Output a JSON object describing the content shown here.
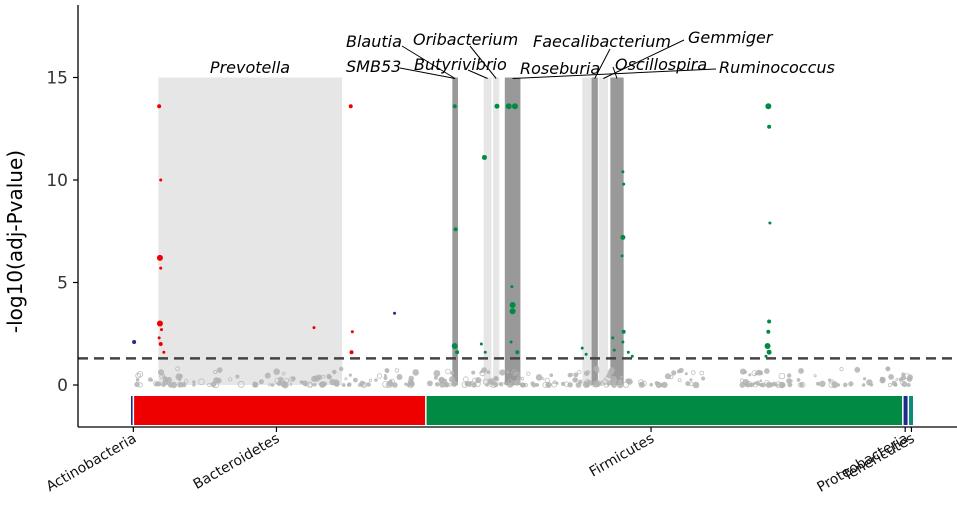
{
  "chart_data": {
    "type": "scatter",
    "title": "",
    "xlabel": "",
    "ylabel": "-log10(adj-Pvalue)",
    "ylim": [
      -1.9,
      18.5
    ],
    "yticks": [
      "0",
      "5",
      "10",
      "15"
    ],
    "ytick_values": [
      0,
      5,
      10,
      15
    ],
    "threshold": 1.3,
    "x_range": [
      0,
      100
    ],
    "phyla": [
      {
        "name": "Actinobacteria",
        "start": 0.0,
        "end": 0.3,
        "label_at": 0.3,
        "color": "#1f2a8c"
      },
      {
        "name": "Bacteroidetes",
        "start": 0.3,
        "end": 37.7,
        "label_at": 18.6,
        "color": "#ee0000"
      },
      {
        "name": "Firmicutes",
        "start": 37.7,
        "end": 98.7,
        "label_at": 66.5,
        "color": "#008a44"
      },
      {
        "name": "Proteobacteria",
        "start": 98.7,
        "end": 99.4,
        "label_at": 99.0,
        "color": "#1f2a8c"
      },
      {
        "name": "Tenericutes",
        "start": 99.4,
        "end": 100.0,
        "label_at": 99.8,
        "color": "#0e8a7a"
      }
    ],
    "highlights": [
      {
        "genus": "Prevotella",
        "start": 3.5,
        "end": 27.0,
        "shade": "light"
      },
      {
        "genus": "SMB53",
        "start": 41.1,
        "end": 41.8,
        "shade": "dark"
      },
      {
        "genus": "Blautia",
        "start": 41.1,
        "end": 41.8,
        "shade": "dark"
      },
      {
        "genus": "Butyrivibrio",
        "start": 45.1,
        "end": 46.1,
        "shade": "light"
      },
      {
        "genus": "Oribacterium",
        "start": 46.3,
        "end": 47.1,
        "shade": "light"
      },
      {
        "genus": "Ruminococcus",
        "start": 47.8,
        "end": 49.8,
        "shade": "dark"
      },
      {
        "genus": "Roseburia",
        "start": 57.7,
        "end": 58.9,
        "shade": "light"
      },
      {
        "genus": "Faecalibacterium",
        "start": 58.9,
        "end": 59.7,
        "shade": "dark"
      },
      {
        "genus": "Gemmiger",
        "start": 59.8,
        "end": 61.0,
        "shade": "light"
      },
      {
        "genus": "Oscillospira",
        "start": 61.3,
        "end": 63.0,
        "shade": "dark"
      }
    ],
    "genus_labels": [
      {
        "genus": "Prevotella",
        "text": "Prevotella"
      },
      {
        "genus": "Blautia",
        "text": "Blautia"
      },
      {
        "genus": "Oribacterium",
        "text": "Oribacterium"
      },
      {
        "genus": "Faecalibacterium",
        "text": "Faecalibacterium"
      },
      {
        "genus": "Gemmiger",
        "text": "Gemmiger"
      },
      {
        "genus": "SMB53",
        "text": "SMB53"
      },
      {
        "genus": "Butyrivibrio",
        "text": "Butyrivibrio"
      },
      {
        "genus": "Roseburia",
        "text": "Roseburia"
      },
      {
        "genus": "Oscillospira",
        "text": "Oscillospira"
      },
      {
        "genus": "Ruminococcus",
        "text": "Ruminococcus"
      }
    ],
    "significant_points": [
      {
        "x": 0.4,
        "y": 2.1,
        "color": "#1f2a8c",
        "size": 2
      },
      {
        "x": 3.6,
        "y": 13.6,
        "color": "#ee0000",
        "size": 2
      },
      {
        "x": 3.8,
        "y": 10.0,
        "color": "#ee0000",
        "size": 1.5
      },
      {
        "x": 3.7,
        "y": 6.2,
        "color": "#ee0000",
        "size": 3
      },
      {
        "x": 3.8,
        "y": 5.7,
        "color": "#ee0000",
        "size": 1.5
      },
      {
        "x": 3.7,
        "y": 3.0,
        "color": "#ee0000",
        "size": 3
      },
      {
        "x": 3.9,
        "y": 2.7,
        "color": "#ee0000",
        "size": 1.5
      },
      {
        "x": 3.6,
        "y": 2.3,
        "color": "#ee0000",
        "size": 1.5
      },
      {
        "x": 3.8,
        "y": 2.0,
        "color": "#ee0000",
        "size": 2
      },
      {
        "x": 4.2,
        "y": 1.6,
        "color": "#ee0000",
        "size": 1.5
      },
      {
        "x": 23.4,
        "y": 2.8,
        "color": "#ee0000",
        "size": 1.5
      },
      {
        "x": 28.1,
        "y": 13.6,
        "color": "#ee0000",
        "size": 2
      },
      {
        "x": 28.3,
        "y": 2.6,
        "color": "#ee0000",
        "size": 1.5
      },
      {
        "x": 28.2,
        "y": 1.6,
        "color": "#ee0000",
        "size": 2
      },
      {
        "x": 33.7,
        "y": 3.5,
        "color": "#1f2a8c",
        "size": 1.5
      },
      {
        "x": 41.4,
        "y": 13.6,
        "color": "#008a44",
        "size": 2
      },
      {
        "x": 41.5,
        "y": 7.6,
        "color": "#008a44",
        "size": 2
      },
      {
        "x": 41.4,
        "y": 1.9,
        "color": "#008a44",
        "size": 3
      },
      {
        "x": 41.7,
        "y": 1.6,
        "color": "#008a44",
        "size": 2
      },
      {
        "x": 45.2,
        "y": 11.1,
        "color": "#008a44",
        "size": 2.5
      },
      {
        "x": 44.8,
        "y": 2.0,
        "color": "#008a44",
        "size": 1.5
      },
      {
        "x": 45.3,
        "y": 1.6,
        "color": "#008a44",
        "size": 1.5
      },
      {
        "x": 46.8,
        "y": 13.6,
        "color": "#008a44",
        "size": 2.5
      },
      {
        "x": 48.3,
        "y": 13.6,
        "color": "#008a44",
        "size": 3
      },
      {
        "x": 49.1,
        "y": 13.6,
        "color": "#008a44",
        "size": 3
      },
      {
        "x": 48.7,
        "y": 4.8,
        "color": "#008a44",
        "size": 1.5
      },
      {
        "x": 48.8,
        "y": 3.9,
        "color": "#008a44",
        "size": 3
      },
      {
        "x": 48.8,
        "y": 3.6,
        "color": "#008a44",
        "size": 3
      },
      {
        "x": 48.6,
        "y": 2.1,
        "color": "#008a44",
        "size": 1.5
      },
      {
        "x": 49.4,
        "y": 1.6,
        "color": "#008a44",
        "size": 2
      },
      {
        "x": 57.7,
        "y": 1.8,
        "color": "#008a44",
        "size": 1.5
      },
      {
        "x": 58.2,
        "y": 1.5,
        "color": "#008a44",
        "size": 1.5
      },
      {
        "x": 61.6,
        "y": 2.3,
        "color": "#008a44",
        "size": 1.5
      },
      {
        "x": 61.8,
        "y": 1.7,
        "color": "#008a44",
        "size": 1.5
      },
      {
        "x": 62.9,
        "y": 10.4,
        "color": "#008a44",
        "size": 1.5
      },
      {
        "x": 63.0,
        "y": 9.8,
        "color": "#008a44",
        "size": 1.5
      },
      {
        "x": 62.9,
        "y": 7.2,
        "color": "#008a44",
        "size": 2.5
      },
      {
        "x": 62.8,
        "y": 6.3,
        "color": "#008a44",
        "size": 1.5
      },
      {
        "x": 63.0,
        "y": 2.6,
        "color": "#008a44",
        "size": 2
      },
      {
        "x": 62.9,
        "y": 2.1,
        "color": "#008a44",
        "size": 1.5
      },
      {
        "x": 63.6,
        "y": 1.6,
        "color": "#008a44",
        "size": 1.5
      },
      {
        "x": 64.1,
        "y": 1.4,
        "color": "#008a44",
        "size": 1.5
      },
      {
        "x": 81.5,
        "y": 13.6,
        "color": "#008a44",
        "size": 3
      },
      {
        "x": 81.6,
        "y": 12.6,
        "color": "#008a44",
        "size": 2
      },
      {
        "x": 81.7,
        "y": 7.9,
        "color": "#008a44",
        "size": 1.5
      },
      {
        "x": 81.6,
        "y": 3.1,
        "color": "#008a44",
        "size": 2
      },
      {
        "x": 81.5,
        "y": 2.6,
        "color": "#008a44",
        "size": 2
      },
      {
        "x": 81.4,
        "y": 1.9,
        "color": "#008a44",
        "size": 3
      },
      {
        "x": 81.6,
        "y": 1.6,
        "color": "#008a44",
        "size": 2.5
      },
      {
        "x": 81.2,
        "y": 1.4,
        "color": "#008a44",
        "size": 1.5
      }
    ],
    "background_clusters": [
      {
        "x": 0.3,
        "spread": 1.5,
        "count": 6
      },
      {
        "x": 4.5,
        "spread": 2.5,
        "count": 26
      },
      {
        "x": 11.0,
        "spread": 4.0,
        "count": 14
      },
      {
        "x": 20.5,
        "spread": 5.0,
        "count": 36
      },
      {
        "x": 30.0,
        "spread": 4.5,
        "count": 26
      },
      {
        "x": 36.0,
        "spread": 3.5,
        "count": 18
      },
      {
        "x": 42.0,
        "spread": 3.0,
        "count": 30
      },
      {
        "x": 48.0,
        "spread": 3.0,
        "count": 36
      },
      {
        "x": 55.0,
        "spread": 4.0,
        "count": 30
      },
      {
        "x": 61.0,
        "spread": 3.0,
        "count": 34
      },
      {
        "x": 69.0,
        "spread": 4.5,
        "count": 24
      },
      {
        "x": 82.0,
        "spread": 4.0,
        "count": 44
      },
      {
        "x": 91.0,
        "spread": 4.0,
        "count": 16
      },
      {
        "x": 98.0,
        "spread": 2.0,
        "count": 20
      }
    ],
    "colors": {
      "background_point": "#b3b3b3",
      "highlight_light": "#e6e6e6",
      "highlight_dark": "#999999",
      "threshold_line": "#444444",
      "axis": "#000000"
    }
  }
}
